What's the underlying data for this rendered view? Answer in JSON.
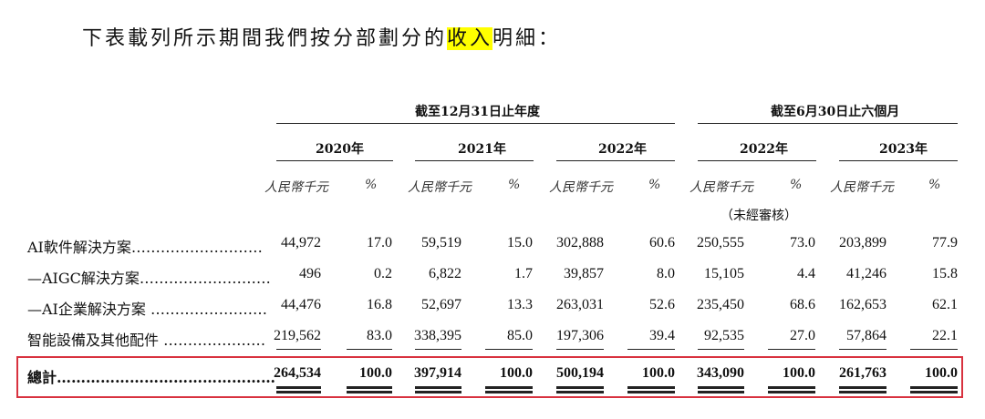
{
  "intro": {
    "before": "下表載列所示期間我們按分部劃分的",
    "highlight": "收入",
    "after": "明細："
  },
  "group_headers": [
    "截至12月31日止年度",
    "截至6月30日止六個月"
  ],
  "years": [
    "2020年",
    "2021年",
    "2022年",
    "2022年",
    "2023年"
  ],
  "unit_amount": "人民幣千元",
  "unit_pct": "%",
  "unaudited": "（未經審核）",
  "rows": [
    {
      "label": "AI軟件解決方案………………………",
      "values": [
        "44,972",
        "17.0",
        "59,519",
        "15.0",
        "302,888",
        "60.6",
        "250,555",
        "73.0",
        "203,899",
        "77.9"
      ]
    },
    {
      "label": "—AIGC解決方案………………………",
      "values": [
        "496",
        "0.2",
        "6,822",
        "1.7",
        "39,857",
        "8.0",
        "15,105",
        "4.4",
        "41,246",
        "15.8"
      ]
    },
    {
      "label": "—AI企業解決方案 ……………………",
      "values": [
        "44,476",
        "16.8",
        "52,697",
        "13.3",
        "263,031",
        "52.6",
        "235,450",
        "68.6",
        "162,653",
        "62.1"
      ]
    },
    {
      "label": "智能設備及其他配件 …………………",
      "values": [
        "219,562",
        "83.0",
        "338,395",
        "85.0",
        "197,306",
        "39.4",
        "92,535",
        "27.0",
        "57,864",
        "22.1"
      ]
    }
  ],
  "total": {
    "label": "總計………………………………………",
    "values": [
      "264,534",
      "100.0",
      "397,914",
      "100.0",
      "500,194",
      "100.0",
      "343,090",
      "100.0",
      "261,763",
      "100.0"
    ]
  }
}
